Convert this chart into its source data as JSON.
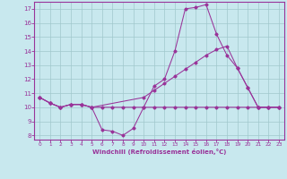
{
  "bg_color": "#c8e8ee",
  "line_color": "#993399",
  "grid_color": "#a0c8cc",
  "xlabel": "Windchill (Refroidissement éolien,°C)",
  "xlim": [
    -0.5,
    23.5
  ],
  "ylim": [
    7.7,
    17.5
  ],
  "yticks": [
    8,
    9,
    10,
    11,
    12,
    13,
    14,
    15,
    16,
    17
  ],
  "xticks": [
    0,
    1,
    2,
    3,
    4,
    5,
    6,
    7,
    8,
    9,
    10,
    11,
    12,
    13,
    14,
    15,
    16,
    17,
    18,
    19,
    20,
    21,
    22,
    23
  ],
  "line1_x": [
    0,
    1,
    2,
    3,
    4,
    5,
    6,
    7,
    8,
    9,
    10,
    11,
    12,
    13,
    14,
    15,
    16,
    17,
    18,
    19,
    20,
    21,
    22,
    23
  ],
  "line1_y": [
    10.7,
    10.3,
    10.0,
    10.2,
    10.2,
    10.0,
    8.4,
    8.3,
    8.0,
    8.5,
    10.0,
    11.5,
    12.0,
    14.0,
    17.0,
    17.1,
    17.3,
    15.2,
    13.7,
    12.8,
    11.4,
    10.0,
    10.0,
    10.0
  ],
  "line2_x": [
    0,
    1,
    2,
    3,
    4,
    5,
    10,
    11,
    12,
    13,
    14,
    15,
    16,
    17,
    18,
    19,
    20,
    21,
    22,
    23
  ],
  "line2_y": [
    10.7,
    10.3,
    10.0,
    10.2,
    10.2,
    10.0,
    10.7,
    11.2,
    11.7,
    12.2,
    12.7,
    13.2,
    13.7,
    14.1,
    14.35,
    12.8,
    11.4,
    10.0,
    10.0,
    10.0
  ],
  "line3_x": [
    0,
    1,
    2,
    3,
    4,
    5,
    6,
    7,
    8,
    9,
    10,
    11,
    12,
    13,
    14,
    15,
    16,
    17,
    18,
    19,
    20,
    21,
    22,
    23
  ],
  "line3_y": [
    10.7,
    10.3,
    10.0,
    10.2,
    10.2,
    10.0,
    10.0,
    10.0,
    10.0,
    10.0,
    10.0,
    10.0,
    10.0,
    10.0,
    10.0,
    10.0,
    10.0,
    10.0,
    10.0,
    10.0,
    10.0,
    10.0,
    10.0,
    10.0
  ]
}
